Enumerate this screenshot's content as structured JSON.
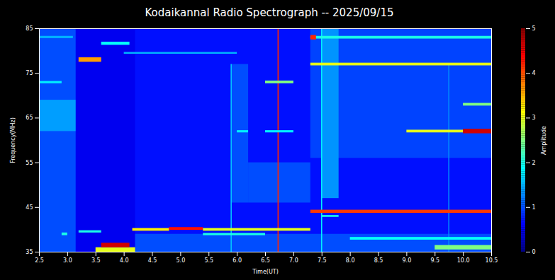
{
  "chart_data": {
    "type": "heatmap",
    "title": "Kodaikannal Radio Spectrograph -- 2025/09/15",
    "x_label": "Time(UT)",
    "y_label": "Frequency(MHz)",
    "xlim": [
      2.5,
      10.5
    ],
    "xticks": [
      2.5,
      {
        "value": 3,
        "label": "3.0"
      },
      3.5,
      {
        "value": 4,
        "label": "4.0"
      },
      4.5,
      {
        "value": 5,
        "label": "5.0"
      },
      5.5,
      {
        "value": 6,
        "label": "6.0"
      },
      6.5,
      {
        "value": 7,
        "label": "7.0"
      },
      7.5,
      {
        "value": 8,
        "label": "8.0"
      },
      8.5,
      {
        "value": 9,
        "label": "9.0"
      },
      9.5,
      {
        "value": 10,
        "label": "10.0"
      },
      10.5
    ],
    "ylim": [
      35,
      85
    ],
    "yticks": [
      35,
      45,
      55,
      65,
      75,
      85
    ],
    "colorbar": {
      "label": "Amplitude",
      "range": [
        0,
        5
      ],
      "ticks": [
        0,
        1,
        2,
        3,
        4,
        5
      ]
    },
    "cells": [
      {
        "t0": 2.5,
        "t1": 10.5,
        "f0": 35,
        "f1": 85,
        "amplitude": 0.7
      },
      {
        "t0": 2.5,
        "t1": 3.15,
        "f0": 35,
        "f1": 85,
        "amplitude": 1.0
      },
      {
        "t0": 2.5,
        "t1": 3.15,
        "f0": 62,
        "f1": 69,
        "amplitude": 1.4
      },
      {
        "t0": 3.15,
        "t1": 4.2,
        "f0": 35,
        "f1": 85,
        "amplitude": 0.55
      },
      {
        "t0": 5.9,
        "t1": 6.2,
        "f0": 46,
        "f1": 77,
        "amplitude": 1.0
      },
      {
        "t0": 6.2,
        "t1": 7.3,
        "f0": 46,
        "f1": 55,
        "amplitude": 1.0
      },
      {
        "t0": 7.3,
        "t1": 10.5,
        "f0": 56,
        "f1": 85,
        "amplitude": 0.95
      },
      {
        "t0": 7.5,
        "t1": 7.8,
        "f0": 47,
        "f1": 85,
        "amplitude": 1.35
      },
      {
        "t0": 4.2,
        "t1": 10.5,
        "f0": 35,
        "f1": 39,
        "amplitude": 1.0
      },
      {
        "t0": 5.89,
        "t1": 5.91,
        "f0": 35,
        "f1": 77,
        "amplitude": 1.6
      },
      {
        "t0": 6.72,
        "t1": 6.74,
        "f0": 35,
        "f1": 85,
        "amplitude": 4.2
      },
      {
        "t0": 7.49,
        "t1": 7.51,
        "f0": 35,
        "f1": 85,
        "amplitude": 1.8
      },
      {
        "t0": 9.74,
        "t1": 9.76,
        "f0": 35,
        "f1": 77,
        "amplitude": 1.3
      },
      {
        "t0": 3.2,
        "t1": 3.6,
        "f0": 77.5,
        "f1": 78.5,
        "amplitude": 3.6
      },
      {
        "t0": 3.6,
        "t1": 4.1,
        "f0": 81.3,
        "f1": 82,
        "amplitude": 1.9
      },
      {
        "t0": 3.5,
        "t1": 4.2,
        "f0": 35,
        "f1": 36,
        "amplitude": 3.0
      },
      {
        "t0": 3.6,
        "t1": 4.1,
        "f0": 36,
        "f1": 37,
        "amplitude": 4.6
      },
      {
        "t0": 2.9,
        "t1": 3.0,
        "f0": 38.7,
        "f1": 39.3,
        "amplitude": 2.0
      },
      {
        "t0": 3.2,
        "t1": 3.6,
        "f0": 39.3,
        "f1": 39.8,
        "amplitude": 2.0
      },
      {
        "t0": 4.15,
        "t1": 4.8,
        "f0": 39.7,
        "f1": 40.3,
        "amplitude": 3.2
      },
      {
        "t0": 4.8,
        "t1": 5.4,
        "f0": 39.9,
        "f1": 40.5,
        "amplitude": 4.3
      },
      {
        "t0": 5.4,
        "t1": 7.3,
        "f0": 39.7,
        "f1": 40.3,
        "amplitude": 3.0
      },
      {
        "t0": 5.4,
        "t1": 6.5,
        "f0": 38.7,
        "f1": 39.2,
        "amplitude": 2.0
      },
      {
        "t0": 7.3,
        "t1": 10.5,
        "f0": 43.7,
        "f1": 44.4,
        "amplitude": 4.1
      },
      {
        "t0": 7.5,
        "t1": 7.8,
        "f0": 42.8,
        "f1": 43.2,
        "amplitude": 2.0
      },
      {
        "t0": 8.0,
        "t1": 10.5,
        "f0": 37.7,
        "f1": 38.3,
        "amplitude": 1.9
      },
      {
        "t0": 9.5,
        "t1": 10.5,
        "f0": 35.5,
        "f1": 36.5,
        "amplitude": 2.5
      },
      {
        "t0": 7.3,
        "t1": 10.5,
        "f0": 76.7,
        "f1": 77.3,
        "amplitude": 3.0
      },
      {
        "t0": 7.3,
        "t1": 10.5,
        "f0": 82.7,
        "f1": 83.3,
        "amplitude": 2.0
      },
      {
        "t0": 7.3,
        "t1": 7.4,
        "f0": 82.5,
        "f1": 83.5,
        "amplitude": 4.2
      },
      {
        "t0": 9.0,
        "t1": 10.0,
        "f0": 61.7,
        "f1": 62.3,
        "amplitude": 3.0
      },
      {
        "t0": 10.0,
        "t1": 10.5,
        "f0": 61.5,
        "f1": 62.5,
        "amplitude": 4.6
      },
      {
        "t0": 10.0,
        "t1": 10.5,
        "f0": 67.7,
        "f1": 68.3,
        "amplitude": 2.5
      },
      {
        "t0": 6.0,
        "t1": 6.2,
        "f0": 61.7,
        "f1": 62.2,
        "amplitude": 1.8
      },
      {
        "t0": 6.5,
        "t1": 7.0,
        "f0": 61.7,
        "f1": 62.2,
        "amplitude": 1.8
      },
      {
        "t0": 6.5,
        "t1": 7.0,
        "f0": 72.7,
        "f1": 73.3,
        "amplitude": 2.5
      },
      {
        "t0": 2.5,
        "t1": 2.9,
        "f0": 72.7,
        "f1": 73.2,
        "amplitude": 1.8
      },
      {
        "t0": 4.0,
        "t1": 6.0,
        "f0": 79.3,
        "f1": 79.7,
        "amplitude": 1.5
      },
      {
        "t0": 2.5,
        "t1": 3.1,
        "f0": 82.8,
        "f1": 83.3,
        "amplitude": 1.5
      }
    ]
  }
}
